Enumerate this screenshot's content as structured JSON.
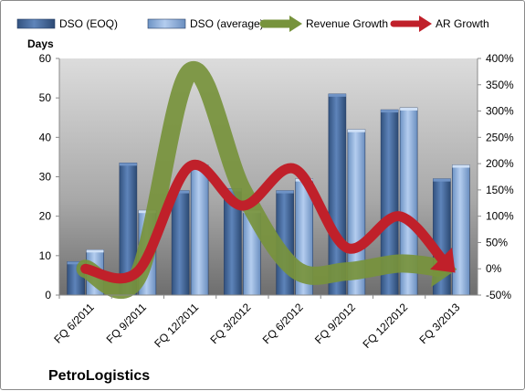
{
  "company_name": "PetroLogistics",
  "chart_data": {
    "type": "bar",
    "categories": [
      "FQ 6/2011",
      "FQ 9/2011",
      "FQ 12/2011",
      "FQ 3/2012",
      "FQ 6/2012",
      "FQ 9/2012",
      "FQ 12/2012",
      "FQ 3/2013"
    ],
    "ylabel": "Days",
    "ylim": [
      0,
      60
    ],
    "y_ticks": [
      "0",
      "10",
      "20",
      "30",
      "40",
      "50",
      "60"
    ],
    "y2lim": [
      -0.5,
      4.0
    ],
    "y2_ticks": [
      "-50%",
      "0%",
      "50%",
      "100%",
      "150%",
      "200%",
      "250%",
      "300%",
      "350%",
      "400%"
    ],
    "legend_position": "top",
    "grid": false,
    "series": [
      {
        "name": "DSO (EOQ)",
        "type": "bar",
        "axis": "left",
        "color": "#4a6fa5",
        "values": [
          8.5,
          33.5,
          26.5,
          27,
          26.5,
          51,
          47,
          29.5
        ]
      },
      {
        "name": "DSO (average)",
        "type": "bar",
        "axis": "left",
        "color": "#8eb4e3",
        "values": [
          11.5,
          21.5,
          33,
          21.5,
          29.5,
          42,
          47.5,
          33
        ]
      },
      {
        "name": "Revenue Growth",
        "type": "line",
        "axis": "right",
        "color": "#77933c",
        "values": [
          0.0,
          -0.15,
          3.75,
          1.5,
          0.0,
          -0.05,
          0.1,
          0.0
        ]
      },
      {
        "name": "AR Growth",
        "type": "line",
        "axis": "right",
        "color": "#c0202a",
        "values": [
          0.0,
          -0.05,
          1.95,
          1.2,
          1.9,
          0.4,
          1.0,
          0.0
        ]
      }
    ]
  }
}
